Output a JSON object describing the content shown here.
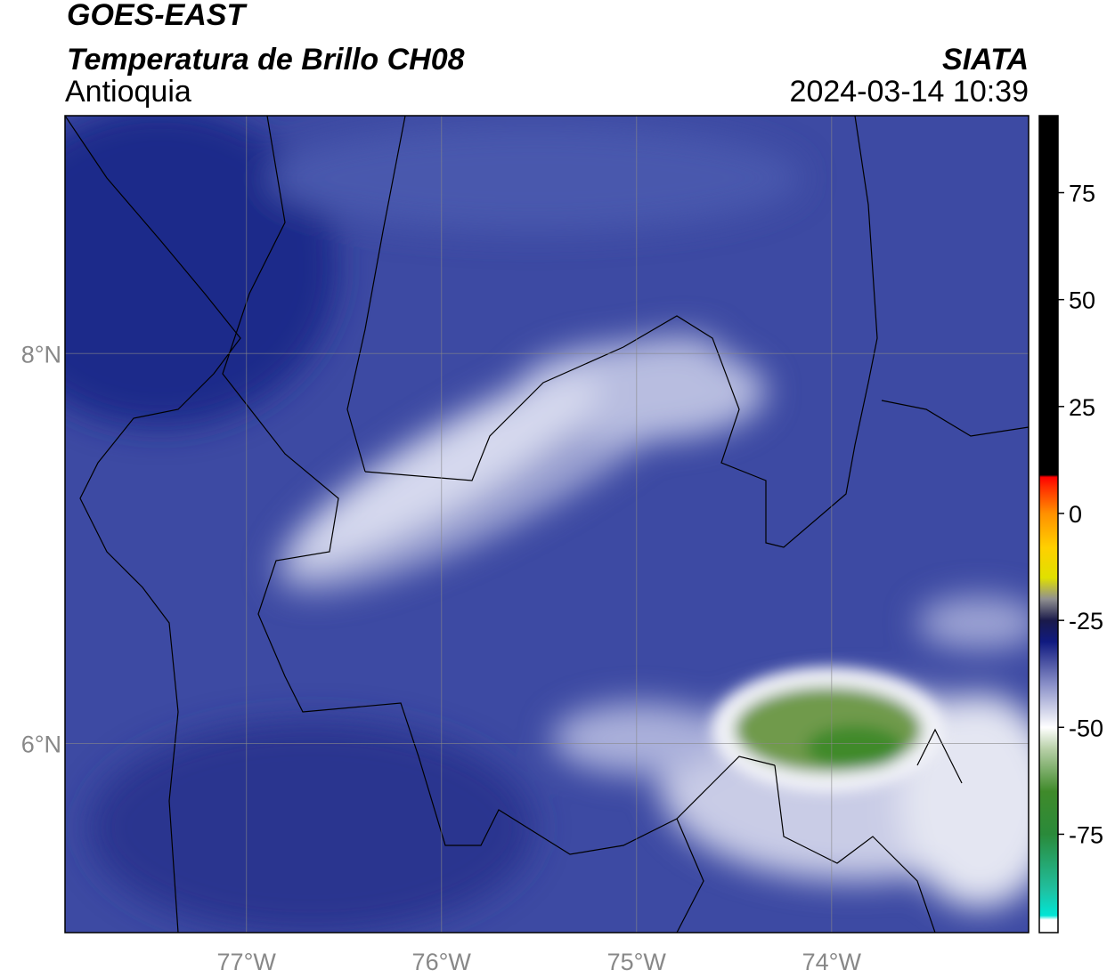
{
  "header": {
    "title": "GOES-EAST",
    "subtitle": "Temperatura de Brillo CH08",
    "region": "Antioquia",
    "source": "SIATA",
    "datetime": "2024-03-14 10:39"
  },
  "map": {
    "xlim": [
      -77.93,
      -72.99
    ],
    "ylim": [
      5.03,
      9.22
    ],
    "xticks": [
      {
        "value": -77,
        "label": "77°W"
      },
      {
        "value": -76,
        "label": "76°W"
      },
      {
        "value": -75,
        "label": "75°W"
      },
      {
        "value": -74,
        "label": "74°W"
      }
    ],
    "yticks": [
      {
        "value": 6,
        "label": "6°N"
      },
      {
        "value": 8,
        "label": "8°N"
      }
    ],
    "grid": true
  },
  "colorbar": {
    "lim": [
      -98,
      93
    ],
    "ticks": [
      -75,
      -50,
      -25,
      0,
      25,
      50,
      75
    ]
  }
}
